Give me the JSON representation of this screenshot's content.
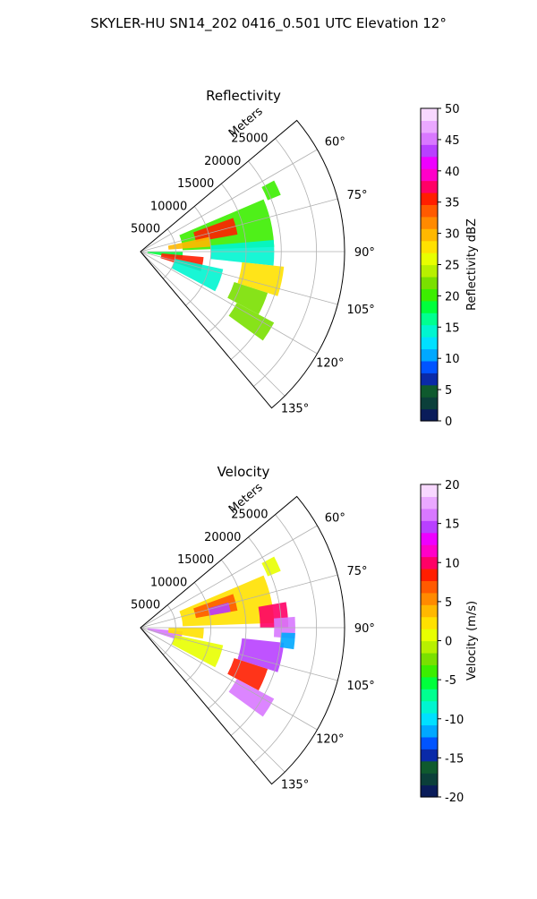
{
  "figure": {
    "suptitle": "SKYLER-HU  SN14_202  0416_0.501 UTC Elevation 12°"
  },
  "chart_data": [
    {
      "type": "heatmap",
      "projection": "polar-sector",
      "title": "Reflectivity",
      "range_axis_label": "Meters",
      "range_ticks": [
        5000,
        10000,
        15000,
        20000,
        25000
      ],
      "range_lim": [
        0,
        29000
      ],
      "azimuth_ticks_deg": [
        60,
        75,
        90,
        105,
        120,
        135
      ],
      "azimuth_tick_labels": [
        "60°",
        "75°",
        "90°",
        "105°",
        "120°",
        "135°"
      ],
      "azimuth_lim_deg": [
        50,
        140
      ],
      "grid": true,
      "colorbar": {
        "label": "Reflectivity dBZ",
        "range": [
          0,
          50
        ],
        "ticks": [
          0,
          5,
          10,
          15,
          20,
          25,
          30,
          35,
          40,
          45,
          50
        ],
        "colors": [
          "#0a1c5a",
          "#0b3f3a",
          "#0f5a2e",
          "#0a2aa8",
          "#0054ff",
          "#00a8ff",
          "#00e0ff",
          "#00f5d0",
          "#00ff90",
          "#00ff3c",
          "#3cee00",
          "#7ae000",
          "#b8f000",
          "#e8ff00",
          "#ffe100",
          "#ffb800",
          "#ff8a00",
          "#ff5a00",
          "#ff1e00",
          "#ff0066",
          "#ff00c8",
          "#ee00ff",
          "#b840ff",
          "#d878ff",
          "#eaa8ff",
          "#f8d8ff"
        ]
      },
      "echo_cells": [
        {
          "az": [
            62,
            68
          ],
          "r": [
            19500,
            21500
          ],
          "value": 20
        },
        {
          "az": [
            67,
            88
          ],
          "r": [
            6000,
            19000
          ],
          "value": 20
        },
        {
          "az": [
            70,
            80
          ],
          "r": [
            8000,
            14000
          ],
          "value": 36
        },
        {
          "az": [
            78,
            86
          ],
          "r": [
            4000,
            10000
          ],
          "value": 30
        },
        {
          "az": [
            90,
            100
          ],
          "r": [
            1000,
            6000
          ],
          "value": 18
        },
        {
          "az": [
            95,
            108
          ],
          "r": [
            3000,
            9000
          ],
          "value": 36
        },
        {
          "az": [
            102,
            118
          ],
          "r": [
            5000,
            12000
          ],
          "value": 15
        },
        {
          "az": [
            85,
            96
          ],
          "r": [
            10000,
            19000
          ],
          "value": 14
        },
        {
          "az": [
            96,
            108
          ],
          "r": [
            14500,
            20500
          ],
          "value": 28
        },
        {
          "az": [
            108,
            118
          ],
          "r": [
            14000,
            19000
          ],
          "value": 22
        },
        {
          "az": [
            118,
            126
          ],
          "r": [
            15500,
            21500
          ],
          "value": 22
        }
      ]
    },
    {
      "type": "heatmap",
      "projection": "polar-sector",
      "title": "Velocity",
      "range_axis_label": "Meters",
      "range_ticks": [
        5000,
        10000,
        15000,
        20000,
        25000
      ],
      "range_lim": [
        0,
        29000
      ],
      "azimuth_ticks_deg": [
        60,
        75,
        90,
        105,
        120,
        135
      ],
      "azimuth_tick_labels": [
        "60°",
        "75°",
        "90°",
        "105°",
        "120°",
        "135°"
      ],
      "azimuth_lim_deg": [
        50,
        140
      ],
      "grid": true,
      "colorbar": {
        "label": "Velocity (m/s)",
        "range": [
          -20,
          20
        ],
        "ticks": [
          -20,
          -15,
          -10,
          -5,
          0,
          5,
          10,
          15,
          20
        ],
        "colors": [
          "#0a1c5a",
          "#0b3f3a",
          "#0f5a2e",
          "#0a2aa8",
          "#0054ff",
          "#00a8ff",
          "#00e0ff",
          "#00f5d0",
          "#00ff90",
          "#00ff3c",
          "#3cee00",
          "#7ae000",
          "#b8f000",
          "#e8ff00",
          "#ffe100",
          "#ffb800",
          "#ff8a00",
          "#ff5a00",
          "#ff1e00",
          "#ff0066",
          "#ff00c8",
          "#ee00ff",
          "#b840ff",
          "#d878ff",
          "#eaa8ff",
          "#f8d8ff"
        ]
      },
      "echo_cells": [
        {
          "az": [
            62,
            68
          ],
          "r": [
            19500,
            21500
          ],
          "value": 1
        },
        {
          "az": [
            67,
            88
          ],
          "r": [
            6000,
            19000
          ],
          "value": 2
        },
        {
          "az": [
            70,
            80
          ],
          "r": [
            8000,
            14000
          ],
          "value": 7
        },
        {
          "az": [
            74,
            80
          ],
          "r": [
            10000,
            13000
          ],
          "value": 15
        },
        {
          "az": [
            80,
            90
          ],
          "r": [
            17000,
            21000
          ],
          "value": 10
        },
        {
          "az": [
            86,
            94
          ],
          "r": [
            19000,
            22000
          ],
          "value": 16
        },
        {
          "az": [
            95,
            108
          ],
          "r": [
            1000,
            6000
          ],
          "value": 16
        },
        {
          "az": [
            90,
            100
          ],
          "r": [
            4000,
            9000
          ],
          "value": 2
        },
        {
          "az": [
            102,
            118
          ],
          "r": [
            5000,
            12000
          ],
          "value": 0
        },
        {
          "az": [
            96,
            108
          ],
          "r": [
            14500,
            20500
          ],
          "value": 15
        },
        {
          "az": [
            92,
            98
          ],
          "r": [
            20000,
            22000
          ],
          "value": -11
        },
        {
          "az": [
            108,
            118
          ],
          "r": [
            14000,
            19000
          ],
          "value": 8
        },
        {
          "az": [
            118,
            126
          ],
          "r": [
            15500,
            21500
          ],
          "value": 16
        }
      ]
    }
  ]
}
